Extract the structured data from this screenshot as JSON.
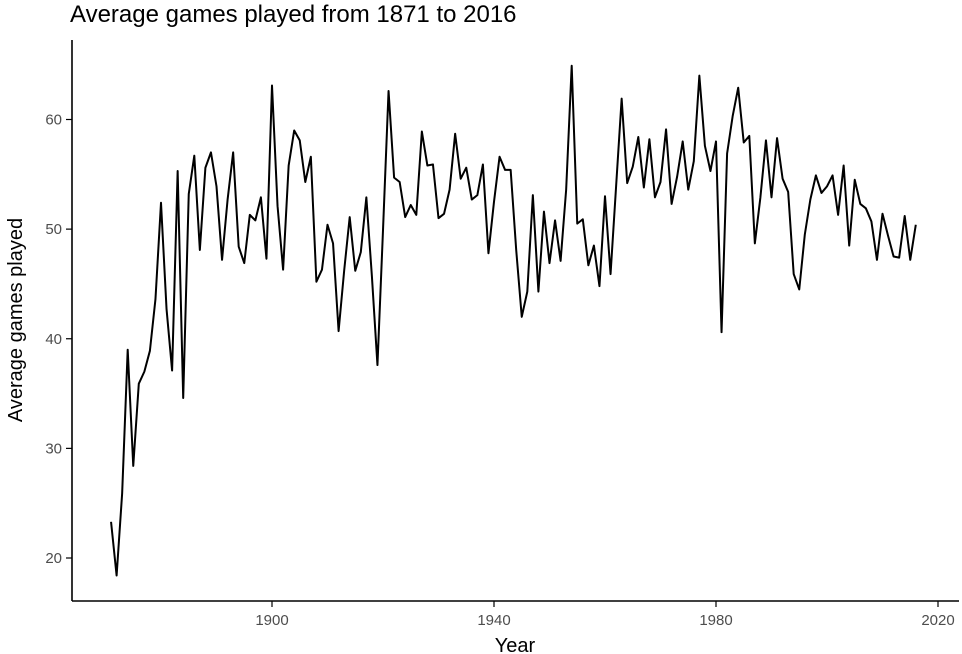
{
  "chart_data": {
    "type": "line",
    "title": "Average games played from 1871 to 2016",
    "xlabel": "Year",
    "ylabel": "Average games played",
    "xlim": [
      1871,
      2016
    ],
    "ylim": [
      16,
      66
    ],
    "xticks": [
      1900,
      1940,
      1980,
      2020
    ],
    "yticks": [
      20,
      30,
      40,
      50,
      60
    ],
    "grid": false,
    "legend": "none",
    "line_color": "#000000",
    "series": [
      {
        "x": [
          1871,
          1872,
          1873,
          1874,
          1875,
          1876,
          1877,
          1878,
          1879,
          1880,
          1881,
          1882,
          1883,
          1884,
          1885,
          1886,
          1887,
          1888,
          1889,
          1890,
          1891,
          1892,
          1893,
          1894,
          1895,
          1896,
          1897,
          1898,
          1899,
          1900,
          1901,
          1902,
          1903,
          1904,
          1905,
          1906,
          1907,
          1908,
          1909,
          1910,
          1911,
          1912,
          1913,
          1914,
          1915,
          1916,
          1917,
          1918,
          1919,
          1920,
          1921,
          1922,
          1923,
          1924,
          1925,
          1926,
          1927,
          1928,
          1929,
          1930,
          1931,
          1932,
          1933,
          1934,
          1935,
          1936,
          1937,
          1938,
          1939,
          1940,
          1941,
          1942,
          1943,
          1944,
          1945,
          1946,
          1947,
          1948,
          1949,
          1950,
          1951,
          1952,
          1953,
          1954,
          1955,
          1956,
          1957,
          1958,
          1959,
          1960,
          1961,
          1962,
          1963,
          1964,
          1965,
          1966,
          1967,
          1968,
          1969,
          1970,
          1971,
          1972,
          1973,
          1974,
          1975,
          1976,
          1977,
          1978,
          1979,
          1980,
          1981,
          1982,
          1983,
          1984,
          1985,
          1986,
          1987,
          1988,
          1989,
          1990,
          1991,
          1992,
          1993,
          1994,
          1995,
          1996,
          1997,
          1998,
          1999,
          2000,
          2001,
          2002,
          2003,
          2004,
          2005,
          2006,
          2007,
          2008,
          2009,
          2010,
          2011,
          2012,
          2013,
          2014,
          2015,
          2016
        ],
        "values": [
          23.3,
          18.4,
          25.9,
          39.0,
          28.4,
          35.9,
          37.0,
          38.9,
          43.6,
          52.4,
          42.7,
          37.1,
          55.3,
          34.6,
          53.2,
          56.7,
          48.1,
          55.6,
          57.0,
          53.9,
          47.2,
          52.7,
          57.0,
          48.4,
          46.9,
          51.3,
          50.8,
          52.9,
          47.3,
          63.1,
          52.1,
          46.3,
          55.8,
          59.0,
          58.1,
          54.3,
          56.6,
          45.2,
          46.3,
          50.4,
          48.7,
          40.7,
          46.2,
          51.1,
          46.2,
          47.9,
          52.9,
          45.7,
          37.6,
          49.9,
          62.6,
          54.7,
          54.3,
          51.1,
          52.2,
          51.3,
          58.9,
          55.8,
          55.9,
          51.0,
          51.4,
          53.6,
          58.7,
          54.6,
          55.6,
          52.7,
          53.1,
          55.9,
          47.8,
          52.5,
          56.6,
          55.4,
          55.4,
          48.1,
          42.0,
          44.3,
          53.1,
          44.3,
          51.6,
          46.9,
          50.8,
          47.1,
          53.6,
          64.9,
          50.5,
          50.9,
          46.7,
          48.5,
          44.8,
          53.0,
          45.9,
          53.9,
          61.9,
          54.2,
          55.7,
          58.4,
          53.8,
          58.2,
          52.9,
          54.3,
          59.1,
          52.3,
          54.8,
          58.0,
          53.6,
          56.2,
          64.0,
          57.6,
          55.3,
          58.0,
          40.6,
          56.9,
          60.3,
          62.9,
          57.9,
          58.5,
          48.7,
          52.9,
          58.1,
          52.9,
          58.3,
          54.6,
          53.4,
          45.9,
          44.5,
          49.5,
          52.7,
          54.9,
          53.3,
          53.9,
          54.9,
          51.3,
          55.8,
          48.5,
          54.5,
          52.3,
          51.9,
          50.7,
          47.2,
          51.4,
          49.4,
          47.5,
          47.4,
          51.2,
          47.2,
          50.4
        ]
      }
    ]
  }
}
